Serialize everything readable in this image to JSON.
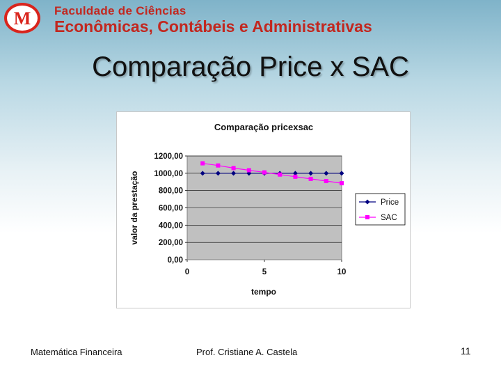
{
  "header": {
    "logo_letter": "M",
    "institution_line1": "Faculdade de Ciências",
    "institution_line2": "Econômicas, Contábeis e Administrativas"
  },
  "slide": {
    "title": "Comparação Price x SAC"
  },
  "footer": {
    "left": "Matemática Financeira",
    "center": "Prof. Cristiane A. Castela",
    "page_number": "11"
  },
  "colors": {
    "brand_red": "#c2271f",
    "price_series": "#000080",
    "sac_series": "#ff00ff",
    "plot_area": "#c0c0c0"
  },
  "chart_data": {
    "type": "line",
    "title": "Comparação pricexsac",
    "xlabel": "tempo",
    "ylabel": "valor da prestação",
    "xlim": [
      0,
      10
    ],
    "ylim": [
      0,
      1200
    ],
    "x_ticks": [
      "0",
      "5",
      "10"
    ],
    "y_ticks": [
      "0,00",
      "200,00",
      "400,00",
      "600,00",
      "800,00",
      "1000,00",
      "1200,00"
    ],
    "grid": true,
    "legend_position": "right",
    "x": [
      1,
      2,
      3,
      4,
      5,
      6,
      7,
      8,
      9,
      10
    ],
    "series": [
      {
        "name": "Price",
        "marker": "diamond",
        "color": "#000080",
        "values": [
          1000,
          1000,
          1000,
          1000,
          1000,
          1000,
          1000,
          1000,
          1000,
          1000
        ]
      },
      {
        "name": "SAC",
        "marker": "square",
        "color": "#ff00ff",
        "values": [
          1115,
          1090,
          1060,
          1035,
          1010,
          985,
          960,
          935,
          910,
          885
        ]
      }
    ]
  }
}
